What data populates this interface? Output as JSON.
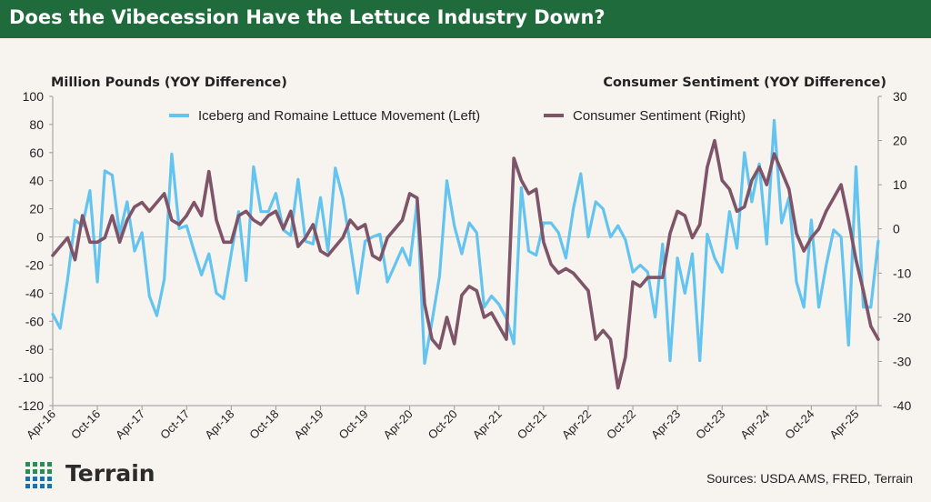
{
  "header": {
    "title": "Does the Vibecession Have the Lettuce Industry Down?"
  },
  "brand": {
    "name": "Terrain"
  },
  "footer": {
    "sources": "Sources: USDA AMS, FRED, Terrain"
  },
  "colors": {
    "header_bg": "#1f6b3b",
    "lettuce": "#63c4ef",
    "sentiment": "#7e5468",
    "background": "#f7f3ef"
  },
  "chart_data": {
    "type": "line",
    "y_left_label": "Million Pounds (YOY Difference)",
    "y_right_label": "Consumer Sentiment (YOY Difference)",
    "y_left_range": [
      -120,
      100
    ],
    "y_right_range": [
      -40,
      30
    ],
    "y_left_ticks": [
      "100",
      "80",
      "60",
      "40",
      "20",
      "0",
      "-20",
      "-40",
      "-60",
      "-80",
      "-100",
      "-120"
    ],
    "y_right_ticks": [
      "30",
      "20",
      "10",
      "0",
      "-10",
      "-20",
      "-30",
      "-40"
    ],
    "x_ticks": [
      "Apr-16",
      "Oct-16",
      "Apr-17",
      "Oct-17",
      "Apr-18",
      "Oct-18",
      "Apr-19",
      "Oct-19",
      "Apr-20",
      "Oct-20",
      "Apr-21",
      "Oct-21",
      "Apr-22",
      "Oct-22",
      "Apr-23",
      "Oct-23",
      "Apr-24",
      "Oct-24",
      "Apr-25"
    ],
    "x_tick_month_index": [
      0,
      6,
      12,
      18,
      24,
      30,
      36,
      42,
      48,
      54,
      60,
      66,
      72,
      78,
      84,
      90,
      96,
      102,
      108
    ],
    "series": [
      {
        "name": "Iceberg and Romaine Lettuce Movement (Left)",
        "axis": "left",
        "values": [
          -55,
          -65,
          -30,
          12,
          8,
          33,
          -32,
          47,
          44,
          2,
          25,
          -10,
          3,
          -42,
          -56,
          -30,
          59,
          6,
          8,
          -10,
          -27,
          -12,
          -40,
          -44,
          -12,
          18,
          -31,
          50,
          18,
          18,
          31,
          5,
          1,
          41,
          -3,
          -5,
          28,
          -10,
          49,
          28,
          -5,
          -40,
          -3,
          0,
          2,
          -32,
          -20,
          -8,
          -20,
          25,
          -90,
          -60,
          -28,
          40,
          8,
          -12,
          10,
          3,
          -50,
          -42,
          -48,
          -58,
          -76,
          35,
          -10,
          -13,
          10,
          10,
          3,
          -15,
          20,
          45,
          0,
          25,
          20,
          0,
          8,
          -2,
          -25,
          -20,
          -25,
          -57,
          -5,
          -88,
          -15,
          -40,
          -12,
          -88,
          2,
          -15,
          -25,
          18,
          -8,
          60,
          25,
          52,
          -5,
          83,
          10,
          28,
          -32,
          -50,
          12,
          -50,
          -20,
          5,
          0,
          -77,
          50,
          -50,
          -50,
          -3
        ]
      },
      {
        "name": "Consumer Sentiment (Right)",
        "axis": "right",
        "values": [
          -6,
          -4,
          -2,
          -7,
          3,
          -3,
          -3,
          -2,
          3,
          -3,
          2,
          5,
          6,
          4,
          6,
          8,
          2,
          1,
          3,
          6,
          3,
          13,
          2,
          -3,
          -3,
          3,
          4,
          2,
          1,
          3,
          4,
          0,
          4,
          -4,
          -2,
          1,
          -5,
          -6,
          -4,
          -2,
          2,
          0,
          1,
          -6,
          -7,
          -2,
          0,
          2,
          8,
          7,
          -17,
          -25,
          -27,
          -20,
          -26,
          -15,
          -13,
          -14,
          -20,
          -19,
          -22,
          -25,
          16,
          11,
          8,
          9,
          -3,
          -8,
          -10,
          -9,
          -10,
          -12,
          -14,
          -25,
          -23,
          -25,
          -36,
          -29,
          -12,
          -13,
          -11,
          -11,
          -11,
          -1,
          4,
          3,
          -2,
          1,
          14,
          20,
          11,
          9,
          4,
          5,
          11,
          14,
          10,
          17,
          13,
          9,
          -1,
          -5,
          -2,
          0,
          4,
          7,
          10,
          2,
          -7,
          -14,
          -22,
          -25
        ]
      }
    ]
  }
}
